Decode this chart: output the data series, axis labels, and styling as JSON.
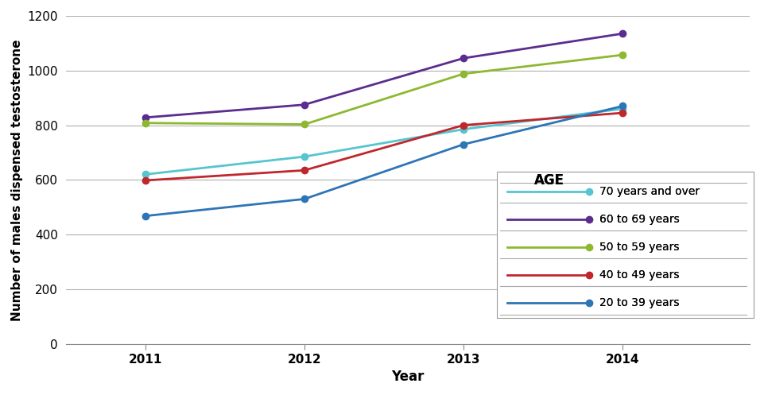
{
  "years": [
    2011,
    2012,
    2013,
    2014
  ],
  "series": [
    {
      "label": "70 years and over",
      "color": "#56C5D0",
      "values": [
        620,
        685,
        785,
        860
      ]
    },
    {
      "label": "60 to 69 years",
      "color": "#5B2D8E",
      "values": [
        828,
        875,
        1045,
        1135
      ]
    },
    {
      "label": "50 to 59 years",
      "color": "#8DB830",
      "values": [
        808,
        803,
        988,
        1057
      ]
    },
    {
      "label": "40 to 49 years",
      "color": "#C0272D",
      "values": [
        598,
        635,
        800,
        845
      ]
    },
    {
      "label": "20 to 39 years",
      "color": "#2E75B6",
      "values": [
        468,
        530,
        730,
        870
      ]
    }
  ],
  "xlabel": "Year",
  "ylabel": "Number of males dispensed testosterone",
  "legend_title": "AGE",
  "ylim": [
    0,
    1200
  ],
  "yticks": [
    0,
    200,
    400,
    600,
    800,
    1000,
    1200
  ],
  "xlim": [
    2010.5,
    2014.8
  ],
  "background_color": "#ffffff",
  "grid_color": "#b0b0b0",
  "axis_label_fontsize": 11,
  "legend_fontsize": 10,
  "tick_fontsize": 11,
  "marker": "o",
  "markersize": 6,
  "linewidth": 2
}
